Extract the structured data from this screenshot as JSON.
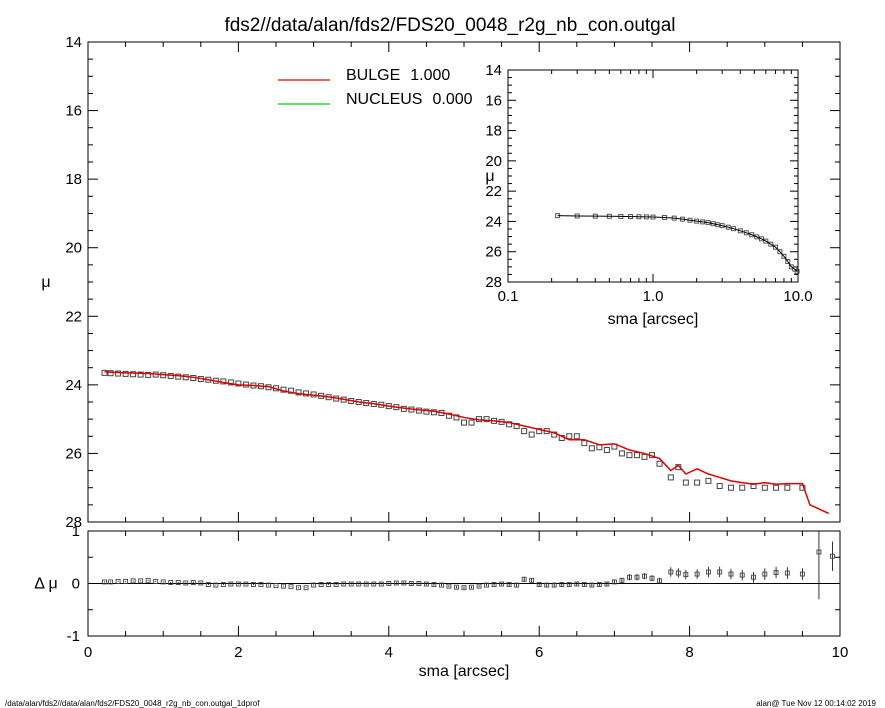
{
  "title": "fds2//data/alan/fds2/FDS20_0048_r2g_nb_con.outgal",
  "footer_left": "/data/alan/fds2//data/alan/fds2/FDS20_0048_r2g_nb_con.outgal_1dprof",
  "footer_right": "alan@  Tue Nov 12 00:14:02 2019",
  "colors": {
    "bulge": "#e00000",
    "nucleus": "#00cc00",
    "data": "#444444"
  },
  "chart_data": [
    {
      "id": "main",
      "type": "line",
      "xlabel": "sma [arcsec]",
      "ylabel": "μ",
      "xlim": [
        0,
        10
      ],
      "ylim": [
        28,
        14
      ],
      "xticks": [
        "0",
        "2",
        "4",
        "6",
        "8",
        "10"
      ],
      "yticks": [
        "14",
        "16",
        "18",
        "20",
        "22",
        "24",
        "26",
        "28"
      ],
      "legend": [
        {
          "name": "BULGE",
          "value": "1.000"
        },
        {
          "name": "NUCLEUS",
          "value": "0.000"
        }
      ],
      "data_points": {
        "x": [
          0.22,
          0.3,
          0.4,
          0.5,
          0.6,
          0.7,
          0.8,
          0.9,
          1.0,
          1.1,
          1.2,
          1.3,
          1.4,
          1.5,
          1.6,
          1.7,
          1.8,
          1.9,
          2.0,
          2.1,
          2.2,
          2.3,
          2.4,
          2.5,
          2.6,
          2.7,
          2.8,
          2.9,
          3.0,
          3.1,
          3.2,
          3.3,
          3.4,
          3.5,
          3.6,
          3.7,
          3.8,
          3.9,
          4.0,
          4.1,
          4.2,
          4.3,
          4.4,
          4.5,
          4.6,
          4.7,
          4.8,
          4.9,
          5.0,
          5.1,
          5.2,
          5.3,
          5.4,
          5.5,
          5.6,
          5.7,
          5.8,
          5.9,
          6.0,
          6.1,
          6.2,
          6.3,
          6.4,
          6.5,
          6.6,
          6.7,
          6.8,
          6.9,
          7.0,
          7.1,
          7.2,
          7.3,
          7.4,
          7.5,
          7.6,
          7.75,
          7.85,
          7.95,
          8.1,
          8.25,
          8.4,
          8.55,
          8.7,
          8.85,
          9.0,
          9.15,
          9.3,
          9.5
        ],
        "y": [
          23.65,
          23.66,
          23.67,
          23.68,
          23.69,
          23.7,
          23.71,
          23.7,
          23.72,
          23.74,
          23.76,
          23.78,
          23.8,
          23.83,
          23.85,
          23.88,
          23.9,
          23.93,
          23.96,
          23.99,
          24.02,
          24.04,
          24.07,
          24.1,
          24.14,
          24.17,
          24.22,
          24.25,
          24.28,
          24.32,
          24.36,
          24.4,
          24.43,
          24.47,
          24.5,
          24.53,
          24.56,
          24.58,
          24.62,
          24.65,
          24.7,
          24.72,
          24.75,
          24.78,
          24.8,
          24.82,
          24.9,
          24.95,
          25.1,
          25.1,
          25.0,
          25.0,
          25.05,
          25.08,
          25.15,
          25.2,
          25.35,
          25.45,
          25.35,
          25.35,
          25.45,
          25.55,
          25.5,
          25.5,
          25.7,
          25.85,
          25.82,
          25.9,
          25.8,
          26.0,
          26.05,
          26.05,
          26.1,
          26.05,
          26.3,
          26.7,
          26.4,
          26.85,
          26.85,
          26.8,
          26.95,
          27.0,
          27.0,
          26.95,
          27.0,
          27.0,
          27.0,
          27.0
        ]
      },
      "series": [
        {
          "name": "BULGE",
          "x": [
            0.22,
            0.5,
            0.8,
            1.0,
            1.2,
            1.4,
            1.6,
            1.8,
            2.0,
            2.2,
            2.4,
            2.6,
            2.8,
            3.0,
            3.2,
            3.4,
            3.6,
            3.8,
            4.0,
            4.2,
            4.4,
            4.6,
            4.8,
            5.0,
            5.2,
            5.4,
            5.6,
            5.8,
            6.0,
            6.2,
            6.4,
            6.6,
            6.8,
            7.0,
            7.2,
            7.4,
            7.6,
            7.75,
            7.85,
            7.95,
            8.1,
            8.25,
            8.4,
            8.55,
            8.7,
            8.85,
            9.0,
            9.15,
            9.3,
            9.5,
            9.6,
            9.85
          ],
          "y": [
            23.62,
            23.65,
            23.67,
            23.7,
            23.73,
            23.78,
            23.85,
            23.93,
            24.0,
            24.02,
            24.05,
            24.18,
            24.26,
            24.3,
            24.35,
            24.42,
            24.5,
            24.55,
            24.62,
            24.68,
            24.73,
            24.77,
            24.85,
            24.95,
            25.02,
            25.05,
            25.1,
            25.2,
            25.3,
            25.4,
            25.6,
            25.6,
            25.75,
            25.72,
            25.9,
            26.0,
            26.15,
            26.5,
            26.35,
            26.6,
            26.45,
            26.6,
            26.7,
            26.8,
            26.85,
            26.9,
            26.85,
            26.9,
            26.88,
            26.88,
            27.5,
            27.75
          ]
        },
        {
          "name": "NUCLEUS",
          "x": [],
          "y": []
        }
      ]
    },
    {
      "id": "residual",
      "type": "scatter",
      "xlabel": "sma [arcsec]",
      "ylabel": "Δ μ",
      "xlim": [
        0,
        10
      ],
      "ylim": [
        -1,
        1
      ],
      "xticks": [
        "0",
        "2",
        "4",
        "6",
        "8",
        "10"
      ],
      "yticks": [
        "-1",
        "0",
        "1"
      ],
      "x": [
        0.22,
        0.3,
        0.4,
        0.5,
        0.6,
        0.7,
        0.8,
        0.9,
        1.0,
        1.1,
        1.2,
        1.3,
        1.4,
        1.5,
        1.6,
        1.7,
        1.8,
        1.9,
        2.0,
        2.1,
        2.2,
        2.3,
        2.4,
        2.5,
        2.6,
        2.7,
        2.8,
        2.9,
        3.0,
        3.1,
        3.2,
        3.3,
        3.4,
        3.5,
        3.6,
        3.7,
        3.8,
        3.9,
        4.0,
        4.1,
        4.2,
        4.3,
        4.4,
        4.5,
        4.6,
        4.7,
        4.8,
        4.9,
        5.0,
        5.1,
        5.2,
        5.3,
        5.4,
        5.5,
        5.6,
        5.7,
        5.8,
        5.9,
        6.0,
        6.1,
        6.2,
        6.3,
        6.4,
        6.5,
        6.6,
        6.7,
        6.8,
        6.9,
        7.0,
        7.1,
        7.2,
        7.3,
        7.4,
        7.5,
        7.6,
        7.75,
        7.85,
        7.95,
        8.1,
        8.25,
        8.4,
        8.55,
        8.7,
        8.85,
        9.0,
        9.15,
        9.3,
        9.5,
        9.72,
        9.9
      ],
      "values": [
        0.03,
        0.03,
        0.04,
        0.04,
        0.05,
        0.05,
        0.06,
        0.04,
        0.03,
        0.02,
        0.02,
        0.01,
        0.02,
        0.01,
        -0.02,
        -0.03,
        -0.02,
        -0.01,
        -0.01,
        -0.01,
        -0.02,
        -0.02,
        -0.03,
        -0.04,
        -0.05,
        -0.06,
        -0.08,
        -0.08,
        -0.03,
        -0.02,
        -0.02,
        -0.02,
        -0.01,
        -0.01,
        -0.01,
        -0.01,
        -0.01,
        -0.01,
        0.0,
        0.01,
        0.01,
        0.0,
        0.0,
        -0.01,
        -0.02,
        -0.03,
        -0.05,
        -0.07,
        -0.08,
        -0.07,
        -0.05,
        -0.03,
        -0.02,
        -0.01,
        -0.02,
        -0.03,
        0.08,
        0.06,
        -0.02,
        -0.03,
        -0.03,
        -0.02,
        -0.02,
        -0.01,
        -0.02,
        -0.03,
        -0.02,
        -0.01,
        0.03,
        0.06,
        0.12,
        0.12,
        0.14,
        0.1,
        0.05,
        0.22,
        0.2,
        0.17,
        0.18,
        0.22,
        0.22,
        0.18,
        0.16,
        0.12,
        0.18,
        0.21,
        0.2,
        0.18,
        0.6,
        0.52
      ],
      "errors": [
        0.01,
        0.01,
        0.01,
        0.01,
        0.01,
        0.01,
        0.01,
        0.01,
        0.01,
        0.01,
        0.01,
        0.01,
        0.01,
        0.01,
        0.01,
        0.01,
        0.01,
        0.01,
        0.01,
        0.01,
        0.01,
        0.01,
        0.01,
        0.01,
        0.01,
        0.01,
        0.01,
        0.01,
        0.01,
        0.01,
        0.01,
        0.01,
        0.01,
        0.01,
        0.01,
        0.01,
        0.01,
        0.01,
        0.02,
        0.02,
        0.02,
        0.02,
        0.02,
        0.02,
        0.02,
        0.02,
        0.02,
        0.02,
        0.02,
        0.02,
        0.02,
        0.02,
        0.02,
        0.02,
        0.03,
        0.03,
        0.05,
        0.04,
        0.03,
        0.03,
        0.03,
        0.03,
        0.03,
        0.03,
        0.03,
        0.03,
        0.03,
        0.03,
        0.04,
        0.05,
        0.06,
        0.06,
        0.06,
        0.06,
        0.06,
        0.09,
        0.09,
        0.09,
        0.09,
        0.1,
        0.1,
        0.1,
        0.1,
        0.1,
        0.11,
        0.11,
        0.11,
        0.11,
        0.9,
        0.28
      ]
    },
    {
      "id": "inset",
      "type": "line",
      "xlabel": "sma [arcsec]",
      "ylabel": "μ",
      "xscale": "log",
      "xlim": [
        0.1,
        10
      ],
      "ylim": [
        28,
        14
      ],
      "xticks": [
        "0.1",
        "1.0",
        "10.0"
      ],
      "yticks": [
        "14",
        "16",
        "18",
        "20",
        "22",
        "24",
        "26",
        "28"
      ],
      "x": [
        0.22,
        0.3,
        0.4,
        0.5,
        0.6,
        0.7,
        0.8,
        0.9,
        1.0,
        1.2,
        1.4,
        1.6,
        1.8,
        2.0,
        2.2,
        2.4,
        2.6,
        2.8,
        3.0,
        3.3,
        3.6,
        4.0,
        4.4,
        4.8,
        5.2,
        5.6,
        6.0,
        6.5,
        7.0,
        7.5,
        8.0,
        8.5,
        9.0,
        9.5,
        9.85
      ],
      "y": [
        23.62,
        23.64,
        23.65,
        23.66,
        23.67,
        23.68,
        23.69,
        23.7,
        23.71,
        23.74,
        23.78,
        23.85,
        23.92,
        23.98,
        24.03,
        24.08,
        24.15,
        24.22,
        24.28,
        24.38,
        24.48,
        24.62,
        24.75,
        24.88,
        25.02,
        25.15,
        25.3,
        25.5,
        25.7,
        26.0,
        26.3,
        26.65,
        27.0,
        27.15,
        27.3
      ]
    }
  ]
}
